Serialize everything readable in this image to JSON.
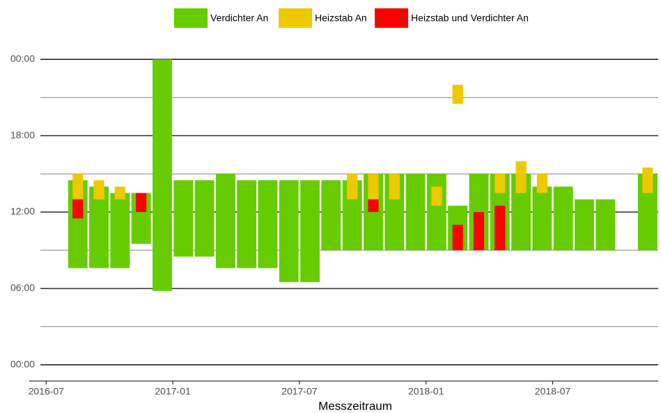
{
  "chart_data": {
    "type": "range-bar",
    "x_label": "Messzeitraum",
    "x": [
      "2016-08",
      "2016-09",
      "2016-10",
      "2016-11",
      "2016-12",
      "2017-01",
      "2017-02",
      "2017-03",
      "2017-04",
      "2017-05",
      "2017-06",
      "2017-07",
      "2017-08",
      "2017-09",
      "2017-10",
      "2017-11",
      "2017-12",
      "2018-01",
      "2018-02",
      "2018-03",
      "2018-04",
      "2018-05",
      "2018-06",
      "2018-07",
      "2018-08",
      "2018-09",
      "2018-10",
      "2018-11"
    ],
    "series": [
      {
        "name": "Verdichter An",
        "color": "#66cc00",
        "values": [
          [
            7.6,
            14.5
          ],
          [
            7.6,
            14
          ],
          [
            7.6,
            13.5
          ],
          [
            9.5,
            13.5
          ],
          [
            5.8,
            24
          ],
          [
            8.5,
            14.5
          ],
          [
            8.5,
            14.5
          ],
          [
            7.6,
            15
          ],
          [
            7.6,
            14.5
          ],
          [
            7.6,
            14.5
          ],
          [
            6.5,
            14.5
          ],
          [
            6.5,
            14.5
          ],
          [
            9,
            14.5
          ],
          [
            9,
            14.5
          ],
          [
            9,
            15
          ],
          [
            9,
            15
          ],
          [
            9,
            15
          ],
          [
            9,
            15
          ],
          [
            9,
            12.5
          ],
          [
            9,
            15
          ],
          [
            9,
            15
          ],
          [
            9,
            15
          ],
          [
            9,
            14
          ],
          [
            9,
            14
          ],
          [
            9,
            13
          ],
          [
            9,
            13
          ],
          null,
          [
            9,
            15
          ]
        ]
      },
      {
        "name": "Heizstab An",
        "color": "#eec900",
        "values": [
          [
            13,
            15
          ],
          [
            13,
            14.5
          ],
          [
            13,
            14
          ],
          null,
          null,
          null,
          null,
          null,
          null,
          null,
          null,
          null,
          null,
          [
            13,
            15
          ],
          [
            13,
            15
          ],
          [
            13,
            15
          ],
          null,
          [
            12.5,
            14
          ],
          [
            20.5,
            22
          ],
          null,
          [
            13.5,
            15
          ],
          [
            13.5,
            16
          ],
          [
            13.5,
            15
          ],
          null,
          null,
          null,
          null,
          [
            13.5,
            15.5
          ]
        ]
      },
      {
        "name": "Heizstab und Verdichter An",
        "color": "#ff0000",
        "values": [
          [
            11.5,
            13
          ],
          null,
          null,
          [
            12,
            13.5
          ],
          null,
          null,
          null,
          null,
          null,
          null,
          null,
          null,
          null,
          null,
          [
            12,
            13
          ],
          null,
          null,
          null,
          [
            9,
            11
          ],
          [
            9,
            12
          ],
          [
            9,
            12.5
          ],
          null,
          null,
          null,
          null,
          null,
          null,
          null
        ]
      }
    ],
    "xlim": [
      "2016-06",
      "2018-12"
    ],
    "xticks": [
      "2016-07",
      "2017-01",
      "2017-07",
      "2018-01",
      "2018-07"
    ],
    "ylim": [
      -1,
      25
    ],
    "yticks": [
      {
        "value": 0,
        "label": "00:00"
      },
      {
        "value": 6,
        "label": "06:00"
      },
      {
        "value": 12,
        "label": "12:00"
      },
      {
        "value": 18,
        "label": "18:00"
      },
      {
        "value": 24,
        "label": "00:00"
      }
    ],
    "minor_yticks": [
      3,
      9,
      15,
      21
    ],
    "grid": true
  }
}
